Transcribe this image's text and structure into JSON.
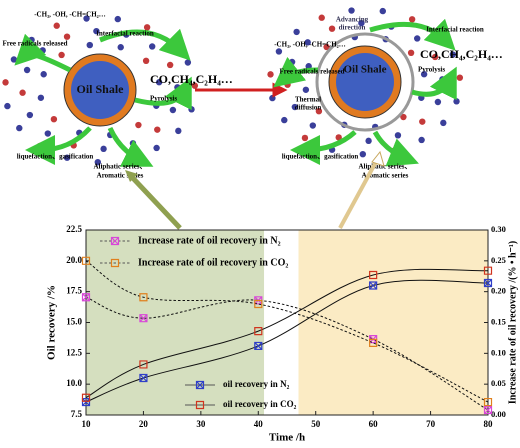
{
  "diagrams": [
    {
      "radicals": "-CH₃, -OH, -CH=CH₂…",
      "interfacial": "Interfacial reaction",
      "released": "Free radicals released",
      "core": "Oil Shale",
      "gases": "CO,CH₄,C₂H₄…",
      "pyrolysis": "Pyrolysis",
      "liquefaction": "liquefaction、gasification",
      "series_line1": "Aliphatic series、",
      "series_line2": "Aromatic series"
    },
    {
      "advancing": "Advancing",
      "direction": "direction",
      "radicals": "-CH₃, -OH, -CH=CH₂…",
      "interfacial": "Interfacial reaction",
      "released": "Free radicals released",
      "core": "Oil Shale",
      "gases": "CO,CH₄,C₂H₄…",
      "pyrolysis": "Pyrolysis",
      "thermal": "Thermal",
      "diffusion": "diffusion",
      "liquefaction": "liquefaction、gasification",
      "series_line1": "Aliphatic series、",
      "series_line2": "Aromatic series"
    }
  ],
  "chart_data": {
    "type": "line",
    "x_label": "Time /h",
    "y_label": "Oil recovery /%",
    "y2_label": "Increase rate of oil recovery /(% • h⁻¹)",
    "x": [
      10,
      20,
      40,
      60,
      80
    ],
    "xlim": [
      10,
      80
    ],
    "xticks": [
      10,
      20,
      30,
      40,
      50,
      60,
      70,
      80
    ],
    "ylim": [
      7.5,
      22.5
    ],
    "yticks": [
      7.5,
      {
        "value": 10,
        "label": "10.0"
      },
      12.5,
      {
        "value": 15,
        "label": "15.0"
      },
      17.5,
      {
        "value": 20,
        "label": "20.0"
      },
      22.5
    ],
    "y2lim": [
      0,
      0.3
    ],
    "y2ticks": [
      {
        "value": 0,
        "label": "0.00"
      },
      0.05,
      {
        "value": 0.1,
        "label": "0.10"
      },
      0.15,
      {
        "value": 0.2,
        "label": "0.20"
      },
      0.25,
      {
        "value": 0.3,
        "label": "0.30"
      }
    ],
    "shaded_regions": [
      {
        "from": 10,
        "to": 41,
        "color": "#d5dfbf"
      },
      {
        "from": 47,
        "to": 80,
        "color": "#fbebc4"
      }
    ],
    "series": [
      {
        "name": "oil recovery in N₂",
        "color": "#2f3fc8",
        "marker": "square-x",
        "line_style": "solid",
        "values": [
          8.55,
          10.5,
          13.1,
          18.0,
          18.2
        ]
      },
      {
        "name": "oil recovery in CO₂",
        "color": "#d0341e",
        "marker": "square",
        "line_style": "solid",
        "values": [
          8.9,
          11.6,
          14.3,
          18.85,
          19.2
        ]
      },
      {
        "name": "Increase rate of oil recovery in N₂",
        "color": "#d848d8",
        "marker": "square-x",
        "line_style": "dashed",
        "axis": "y2",
        "values": [
          0.191,
          0.157,
          0.186,
          0.123,
          0.008
        ]
      },
      {
        "name": "Increase rate of oil recovery in CO₂",
        "color": "#e0801e",
        "marker": "square",
        "line_style": "dashed",
        "axis": "y2",
        "values": [
          0.25,
          0.191,
          0.18,
          0.117,
          0.021
        ]
      }
    ]
  }
}
